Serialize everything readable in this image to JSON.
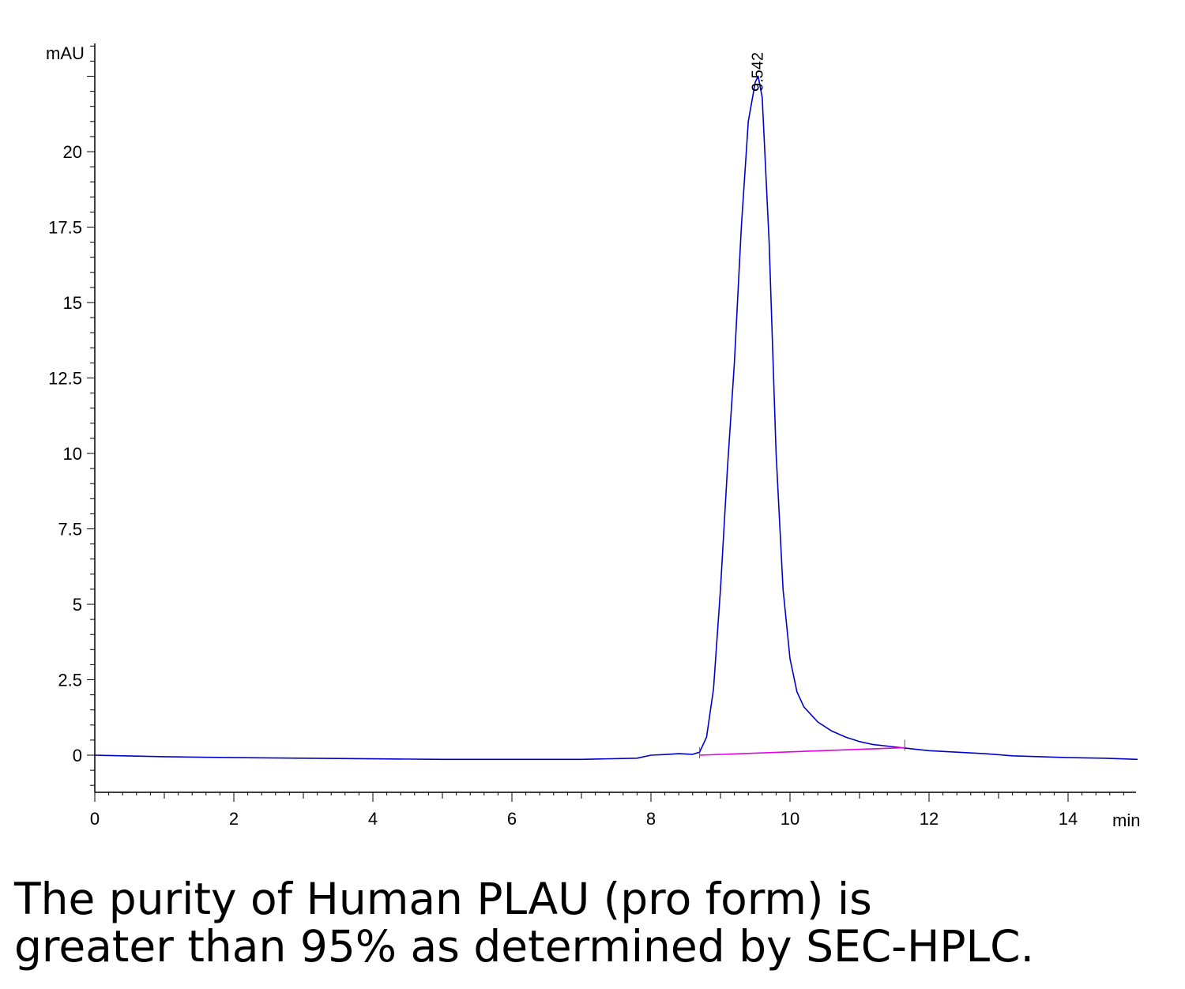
{
  "chart_data": {
    "type": "line",
    "title": "",
    "xlabel": "min",
    "ylabel": "mAU",
    "xlim": [
      0,
      15
    ],
    "ylim": [
      -1.25,
      23.5
    ],
    "x_ticks": [
      0,
      2,
      4,
      6,
      8,
      10,
      12,
      14
    ],
    "y_ticks": [
      0,
      2.5,
      5,
      7.5,
      10,
      12.5,
      15,
      17.5,
      20
    ],
    "y_tick_labels": [
      "0",
      "2.5",
      "5",
      "7.5",
      "10",
      "12.5",
      "15",
      "17.5",
      "20"
    ],
    "x_tick_labels": [
      "0",
      "2",
      "4",
      "6",
      "8",
      "10",
      "12",
      "14"
    ],
    "grid": false,
    "series": [
      {
        "color": "#0000cc",
        "x": [
          0,
          1,
          2,
          3,
          4,
          5,
          6,
          7,
          7.8,
          8.0,
          8.2,
          8.4,
          8.6,
          8.7,
          8.8,
          8.9,
          9.0,
          9.1,
          9.2,
          9.3,
          9.4,
          9.5,
          9.542,
          9.6,
          9.7,
          9.8,
          9.9,
          10.0,
          10.1,
          10.2,
          10.4,
          10.6,
          10.8,
          11.0,
          11.2,
          11.4,
          11.6,
          11.8,
          12.0,
          12.4,
          12.8,
          13.2,
          13.6,
          14.0,
          14.5,
          15.0
        ],
        "y": [
          0.0,
          -0.05,
          -0.08,
          -0.1,
          -0.12,
          -0.14,
          -0.14,
          -0.14,
          -0.1,
          0.0,
          0.02,
          0.05,
          0.03,
          0.1,
          0.6,
          2.2,
          5.5,
          9.5,
          13.0,
          17.5,
          21.0,
          22.3,
          22.5,
          21.8,
          17.0,
          10.0,
          5.5,
          3.2,
          2.1,
          1.6,
          1.1,
          0.8,
          0.6,
          0.45,
          0.35,
          0.3,
          0.25,
          0.2,
          0.15,
          0.1,
          0.05,
          -0.02,
          -0.05,
          -0.08,
          -0.1,
          -0.14
        ]
      },
      {
        "name": "",
        "color": "#e000e0",
        "x": [
          8.7,
          11.65
        ],
        "y": [
          0.0,
          0.25
        ]
      }
    ],
    "annotations": [
      {
        "text": "9.542",
        "x": 9.542
      }
    ]
  },
  "caption": {
    "line1": "The purity of Human PLAU (pro form) is",
    "line2": "greater than 95% as determined by SEC-HPLC."
  }
}
